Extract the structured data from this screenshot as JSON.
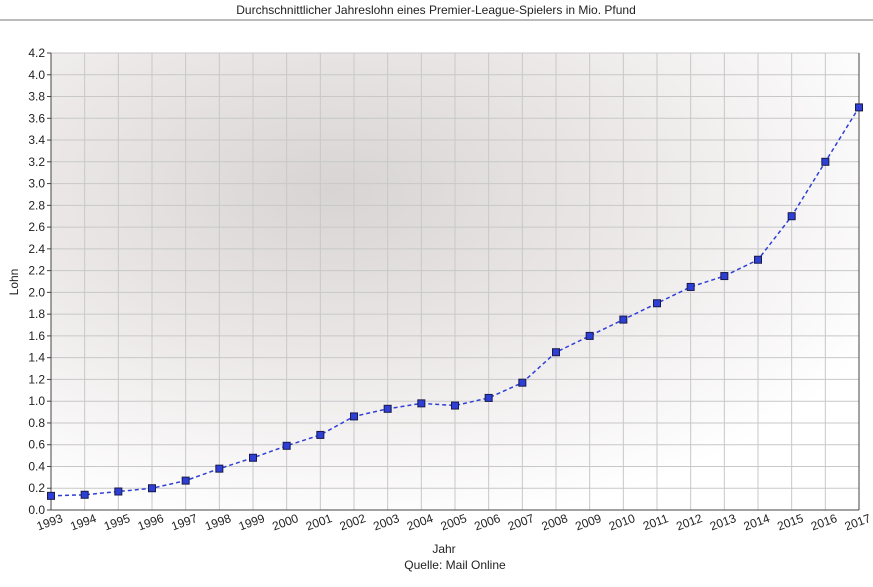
{
  "chart_data": {
    "type": "line",
    "title": "Durchschnittlicher Jahreslohn eines Premier-League-Spielers in Mio. Pfund",
    "x_label": "Jahr",
    "y_label": "Lohn",
    "source": "Quelle: Mail Online",
    "categories": [
      "1993",
      "1994",
      "1995",
      "1996",
      "1997",
      "1998",
      "1999",
      "2000",
      "2001",
      "2002",
      "2003",
      "2004",
      "2005",
      "2006",
      "2007",
      "2008",
      "2009",
      "2010",
      "2011",
      "2012",
      "2013",
      "2014",
      "2015",
      "2016",
      "2017"
    ],
    "series": [
      {
        "name": "Lohn",
        "color": "#2e3fd6",
        "values": [
          0.13,
          0.14,
          0.17,
          0.2,
          0.27,
          0.38,
          0.48,
          0.59,
          0.69,
          0.86,
          0.93,
          0.98,
          0.96,
          1.03,
          1.17,
          1.45,
          1.6,
          1.75,
          1.9,
          2.05,
          2.15,
          2.3,
          2.7,
          3.2,
          3.7
        ]
      }
    ],
    "ylim": [
      0,
      4.2
    ],
    "yticks": [
      {
        "value": 0,
        "label": "0.0"
      },
      0.2,
      0.4,
      0.6,
      0.8,
      {
        "value": 1,
        "label": "1.0"
      },
      1.2,
      1.4,
      1.6,
      1.8,
      {
        "value": 2,
        "label": "2.0"
      },
      2.2,
      2.4,
      2.6,
      2.8,
      {
        "value": 3,
        "label": "3.0"
      },
      3.2,
      3.4,
      3.6,
      3.8,
      {
        "value": 4,
        "label": "4.0"
      },
      4.2
    ],
    "grid": true
  }
}
